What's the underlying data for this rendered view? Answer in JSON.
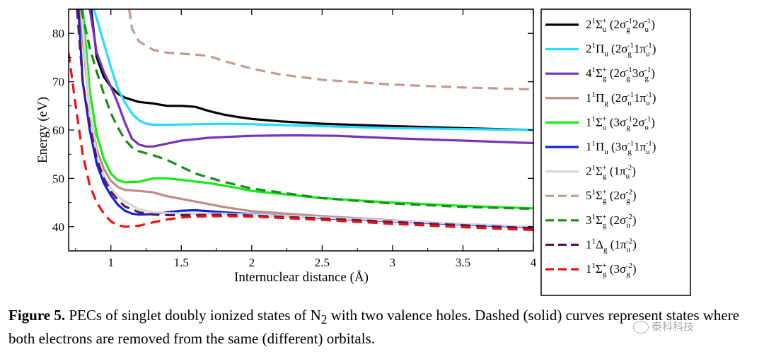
{
  "chart_data": {
    "type": "line",
    "title": "",
    "xlabel": "Internuclear distance (Å)",
    "ylabel": "Energy (eV)",
    "xlim": [
      0.7,
      4.0
    ],
    "ylim": [
      35,
      85
    ],
    "x_ticks": [
      1,
      1.5,
      2,
      2.5,
      3,
      3.5,
      4
    ],
    "x_tick_labels": [
      "1",
      "1.5",
      "2",
      "2.5",
      "3",
      "3.5",
      "4"
    ],
    "y_ticks": [
      40,
      50,
      60,
      70,
      80
    ],
    "y_tick_labels": [
      "40",
      "50",
      "60",
      "70",
      "80"
    ],
    "grid": false,
    "legend_position": "right-outside",
    "series": [
      {
        "key": "s1",
        "label": {
          "main": "2",
          "sup1": "1",
          "sym": "Σ",
          "subsym": "u",
          "supsym": "+",
          "term": "(2σ",
          "t1sub": "g",
          "t1sup": "-1",
          "t2": "2σ",
          "t2sub": "u",
          "t2sup": "-1",
          "close": ")"
        },
        "color": "#000000",
        "dash": "solid",
        "points": [
          [
            0.86,
            85
          ],
          [
            0.9,
            75
          ],
          [
            0.95,
            71
          ],
          [
            1.0,
            69
          ],
          [
            1.05,
            67.5
          ],
          [
            1.1,
            66.7
          ],
          [
            1.2,
            65.8
          ],
          [
            1.3,
            65.5
          ],
          [
            1.4,
            65.0
          ],
          [
            1.5,
            65.0
          ],
          [
            1.6,
            64.8
          ],
          [
            1.7,
            63.9
          ],
          [
            1.8,
            63.2
          ],
          [
            1.9,
            62.7
          ],
          [
            2.0,
            62.3
          ],
          [
            2.2,
            61.8
          ],
          [
            2.5,
            61.3
          ],
          [
            3.0,
            60.8
          ],
          [
            3.5,
            60.4
          ],
          [
            4.0,
            60.0
          ]
        ]
      },
      {
        "key": "s2",
        "label": {
          "main": "2",
          "sup1": "1",
          "sym": "Π",
          "subsym": "u",
          "supsym": "",
          "term": "(2σ",
          "t1sub": "g",
          "t1sup": "-1",
          "t2": "1π",
          "t2sub": "u",
          "t2sup": "-1",
          "close": ")"
        },
        "color": "#22ddff",
        "dash": "solid",
        "points": [
          [
            0.88,
            85
          ],
          [
            0.95,
            78
          ],
          [
            1.0,
            73
          ],
          [
            1.05,
            68.5
          ],
          [
            1.1,
            65.7
          ],
          [
            1.15,
            63.4
          ],
          [
            1.2,
            62.0
          ],
          [
            1.25,
            61.3
          ],
          [
            1.3,
            61.1
          ],
          [
            1.4,
            61.1
          ],
          [
            1.6,
            61.2
          ],
          [
            1.8,
            61.3
          ],
          [
            2.0,
            61.2
          ],
          [
            2.5,
            60.8
          ],
          [
            3.0,
            60.4
          ],
          [
            3.5,
            60.2
          ],
          [
            4.0,
            60.0
          ]
        ]
      },
      {
        "key": "s3",
        "label": {
          "main": "4",
          "sup1": "1",
          "sym": "Σ",
          "subsym": "g",
          "supsym": "+",
          "term": "(2σ",
          "t1sub": "g",
          "t1sup": "-1",
          "t2": "3σ",
          "t2sub": "g",
          "t2sup": "-1",
          "close": ")"
        },
        "color": "#7733bb",
        "dash": "solid",
        "points": [
          [
            0.85,
            85
          ],
          [
            0.9,
            76
          ],
          [
            0.95,
            72
          ],
          [
            1.0,
            69
          ],
          [
            1.05,
            65.5
          ],
          [
            1.1,
            61.5
          ],
          [
            1.15,
            58.2
          ],
          [
            1.2,
            57.0
          ],
          [
            1.25,
            56.6
          ],
          [
            1.3,
            56.6
          ],
          [
            1.4,
            57.2
          ],
          [
            1.5,
            57.8
          ],
          [
            1.7,
            58.4
          ],
          [
            2.0,
            58.8
          ],
          [
            2.3,
            58.9
          ],
          [
            2.6,
            58.8
          ],
          [
            3.0,
            58.3
          ],
          [
            3.5,
            57.8
          ],
          [
            4.0,
            57.3
          ]
        ]
      },
      {
        "key": "s4",
        "label": {
          "main": "1",
          "sup1": "1",
          "sym": "Π",
          "subsym": "g",
          "supsym": "",
          "term": "(2σ",
          "t1sub": "u",
          "t1sup": "-1",
          "t2": "1π",
          "t2sub": "u",
          "t2sup": "-1",
          "close": ")"
        },
        "color": "#bb8d85",
        "dash": "solid",
        "points": [
          [
            0.78,
            85
          ],
          [
            0.85,
            64
          ],
          [
            0.9,
            56
          ],
          [
            0.95,
            52
          ],
          [
            1.0,
            49.5
          ],
          [
            1.05,
            48.2
          ],
          [
            1.1,
            47.6
          ],
          [
            1.2,
            47.4
          ],
          [
            1.3,
            47.1
          ],
          [
            1.4,
            46.3
          ],
          [
            1.6,
            45.2
          ],
          [
            1.8,
            44.1
          ],
          [
            2.0,
            43.2
          ],
          [
            2.5,
            42.2
          ],
          [
            3.0,
            41.3
          ],
          [
            3.5,
            40.5
          ],
          [
            4.0,
            39.8
          ]
        ]
      },
      {
        "key": "s5",
        "label": {
          "main": "1",
          "sup1": "1",
          "sym": "Σ",
          "subsym": "u",
          "supsym": "+",
          "term": "(3σ",
          "t1sub": "g",
          "t1sup": "-1",
          "t2": "2σ",
          "t2sub": "u",
          "t2sup": "-1",
          "close": ")"
        },
        "color": "#11ee11",
        "dash": "solid",
        "points": [
          [
            0.8,
            85
          ],
          [
            0.85,
            68
          ],
          [
            0.9,
            59
          ],
          [
            0.95,
            54
          ],
          [
            1.0,
            51
          ],
          [
            1.05,
            49.6
          ],
          [
            1.1,
            49.2
          ],
          [
            1.2,
            49.3
          ],
          [
            1.3,
            50.0
          ],
          [
            1.4,
            50.0
          ],
          [
            1.5,
            49.7
          ],
          [
            1.7,
            49.0
          ],
          [
            1.9,
            48.0
          ],
          [
            2.0,
            47.4
          ],
          [
            2.5,
            45.9
          ],
          [
            3.0,
            45.0
          ],
          [
            3.5,
            44.3
          ],
          [
            4.0,
            43.8
          ]
        ]
      },
      {
        "key": "s6",
        "label": {
          "main": "1",
          "sup1": "1",
          "sym": "Π",
          "subsym": "u",
          "supsym": "",
          "term": "(3σ",
          "t1sub": "g",
          "t1sup": "-1",
          "t2": "1π",
          "t2sub": "u",
          "t2sup": "-1",
          "close": ")"
        },
        "color": "#1122dd",
        "dash": "solid",
        "points": [
          [
            0.77,
            85
          ],
          [
            0.8,
            70
          ],
          [
            0.85,
            60
          ],
          [
            0.9,
            53
          ],
          [
            0.95,
            49
          ],
          [
            1.0,
            46.5
          ],
          [
            1.05,
            44.5
          ],
          [
            1.1,
            43.3
          ],
          [
            1.15,
            42.7
          ],
          [
            1.2,
            42.5
          ],
          [
            1.3,
            42.6
          ],
          [
            1.4,
            43.0
          ],
          [
            1.5,
            43.3
          ],
          [
            1.6,
            43.4
          ],
          [
            1.8,
            43.0
          ],
          [
            2.0,
            42.6
          ],
          [
            2.5,
            41.8
          ],
          [
            3.0,
            41.1
          ],
          [
            3.5,
            40.5
          ],
          [
            4.0,
            39.9
          ]
        ]
      },
      {
        "key": "s7",
        "label": {
          "main": "2",
          "sup1": "1",
          "sym": "Σ",
          "subsym": "g",
          "supsym": "+",
          "term": "(1π",
          "t1sub": "u",
          "t1sup": "-2",
          "t2": "",
          "t2sub": "",
          "t2sup": "",
          "close": ")"
        },
        "color": "#d8d8d8",
        "dash": "solid",
        "points": [
          [
            0.79,
            85
          ],
          [
            0.85,
            64
          ],
          [
            0.9,
            55
          ],
          [
            0.95,
            50.5
          ],
          [
            1.0,
            48
          ],
          [
            1.05,
            46.3
          ],
          [
            1.1,
            45.2
          ],
          [
            1.2,
            43.6
          ],
          [
            1.3,
            43.0
          ],
          [
            1.4,
            42.8
          ],
          [
            1.6,
            42.7
          ],
          [
            1.8,
            42.7
          ],
          [
            2.0,
            42.5
          ],
          [
            2.5,
            41.9
          ],
          [
            3.0,
            41.2
          ],
          [
            3.5,
            40.6
          ],
          [
            4.0,
            40.0
          ]
        ]
      },
      {
        "key": "s8",
        "label": {
          "main": "5",
          "sup1": "1",
          "sym": "Σ",
          "subsym": "g",
          "supsym": "+",
          "term": "(2σ",
          "t1sub": "g",
          "t1sup": "-2",
          "t2": "",
          "t2sub": "",
          "t2sup": "",
          "close": ")"
        },
        "color": "#c19a95",
        "dash": "dashed",
        "points": [
          [
            1.13,
            85
          ],
          [
            1.15,
            81
          ],
          [
            1.2,
            78.3
          ],
          [
            1.3,
            76.6
          ],
          [
            1.4,
            76.0
          ],
          [
            1.5,
            75.8
          ],
          [
            1.6,
            75.6
          ],
          [
            1.7,
            75.3
          ],
          [
            1.8,
            74.3
          ],
          [
            2.0,
            72.7
          ],
          [
            2.2,
            71.5
          ],
          [
            2.5,
            70.4
          ],
          [
            3.0,
            69.4
          ],
          [
            3.5,
            68.8
          ],
          [
            4.0,
            68.4
          ]
        ]
      },
      {
        "key": "s9",
        "label": {
          "main": "3",
          "sup1": "1",
          "sym": "Σ",
          "subsym": "g",
          "supsym": "+",
          "term": "(2σ",
          "t1sub": "u",
          "t1sup": "-2",
          "t2": "",
          "t2sub": "",
          "t2sup": "",
          "close": ")"
        },
        "color": "#1a8a1a",
        "dash": "dashed",
        "points": [
          [
            0.79,
            85
          ],
          [
            0.85,
            77
          ],
          [
            0.9,
            72
          ],
          [
            0.95,
            67.5
          ],
          [
            1.0,
            63.5
          ],
          [
            1.05,
            60.5
          ],
          [
            1.1,
            58
          ],
          [
            1.15,
            56.4
          ],
          [
            1.2,
            55.6
          ],
          [
            1.3,
            54.8
          ],
          [
            1.4,
            53.8
          ],
          [
            1.6,
            51.0
          ],
          [
            1.8,
            49.3
          ],
          [
            2.0,
            47.9
          ],
          [
            2.5,
            45.9
          ],
          [
            3.0,
            44.8
          ],
          [
            3.5,
            44.1
          ],
          [
            4.0,
            43.7
          ]
        ]
      },
      {
        "key": "s10",
        "label": {
          "main": "1",
          "sup1": "1",
          "sym": "Δ",
          "subsym": "g",
          "supsym": "",
          "term": "(1π",
          "t1sub": "u",
          "t1sup": "-2",
          "t2": "",
          "t2sub": "",
          "t2sup": "",
          "close": ")"
        },
        "color": "#5a1a5a",
        "dash": "dashed",
        "points": [
          [
            0.76,
            85
          ],
          [
            0.8,
            70
          ],
          [
            0.85,
            61
          ],
          [
            0.9,
            54
          ],
          [
            0.95,
            50
          ],
          [
            1.0,
            47.3
          ],
          [
            1.05,
            45.5
          ],
          [
            1.1,
            44.2
          ],
          [
            1.2,
            43.0
          ],
          [
            1.3,
            42.5
          ],
          [
            1.4,
            42.4
          ],
          [
            1.6,
            42.4
          ],
          [
            1.8,
            42.5
          ],
          [
            2.0,
            42.3
          ],
          [
            2.5,
            41.7
          ],
          [
            3.0,
            41.0
          ],
          [
            3.5,
            40.3
          ],
          [
            4.0,
            39.7
          ]
        ]
      },
      {
        "key": "s11",
        "label": {
          "main": "1",
          "sup1": "1",
          "sym": "Σ",
          "subsym": "g",
          "supsym": "+",
          "term": "(3σ",
          "t1sub": "g",
          "t1sup": "-2",
          "t2": "",
          "t2sub": "",
          "t2sup": "",
          "close": ")"
        },
        "color": "#ee1111",
        "dash": "dashed",
        "points": [
          [
            0.7,
            76
          ],
          [
            0.75,
            65
          ],
          [
            0.8,
            55
          ],
          [
            0.85,
            48.5
          ],
          [
            0.9,
            45
          ],
          [
            0.95,
            42.7
          ],
          [
            1.0,
            41.1
          ],
          [
            1.05,
            40.3
          ],
          [
            1.1,
            40.0
          ],
          [
            1.2,
            40.2
          ],
          [
            1.3,
            40.9
          ],
          [
            1.4,
            41.5
          ],
          [
            1.5,
            41.9
          ],
          [
            1.6,
            42.1
          ],
          [
            1.8,
            42.2
          ],
          [
            2.0,
            42.1
          ],
          [
            2.5,
            41.4
          ],
          [
            3.0,
            40.6
          ],
          [
            3.5,
            39.9
          ],
          [
            4.0,
            39.3
          ]
        ]
      }
    ]
  },
  "caption": {
    "figure_label": "Figure 5.",
    "text_1": " PECs of singlet doubly ionized states of N",
    "sub": "2",
    "text_2": " with two valence holes. Dashed (solid) curves represent states where both electrons are removed from the same (different) orbitals."
  },
  "watermark": {
    "text": "泰科科技"
  }
}
